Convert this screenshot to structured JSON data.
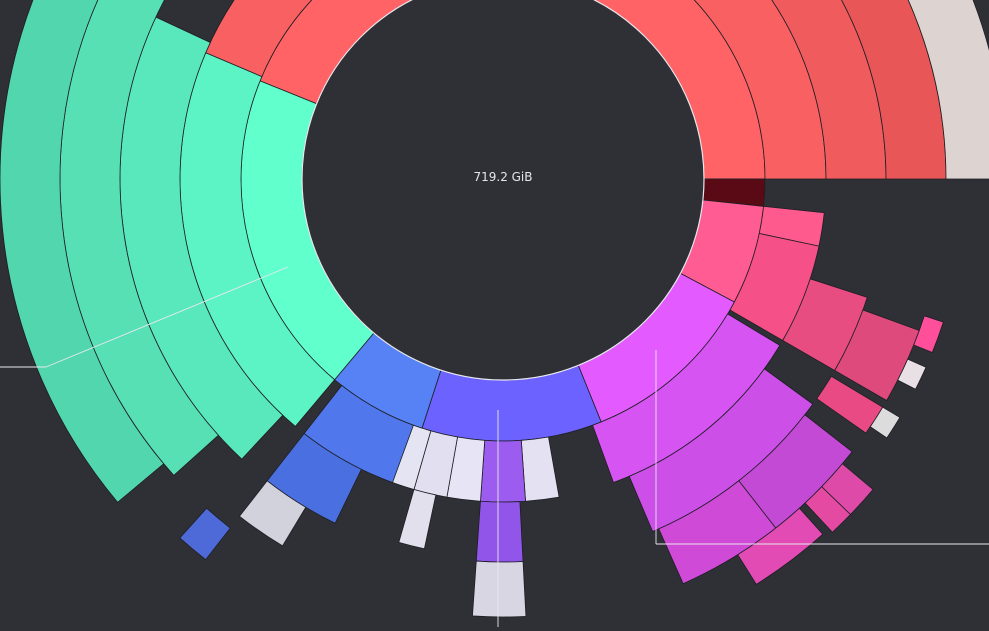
{
  "center": {
    "total_size": "719.2 GiB"
  },
  "colors": {
    "background": "#2f2f36",
    "hole": "#2f2f36",
    "selected_segment": "#5a0a14"
  },
  "segment_groups": [
    "red",
    "pink",
    "magenta",
    "violet",
    "blue",
    "green"
  ]
}
